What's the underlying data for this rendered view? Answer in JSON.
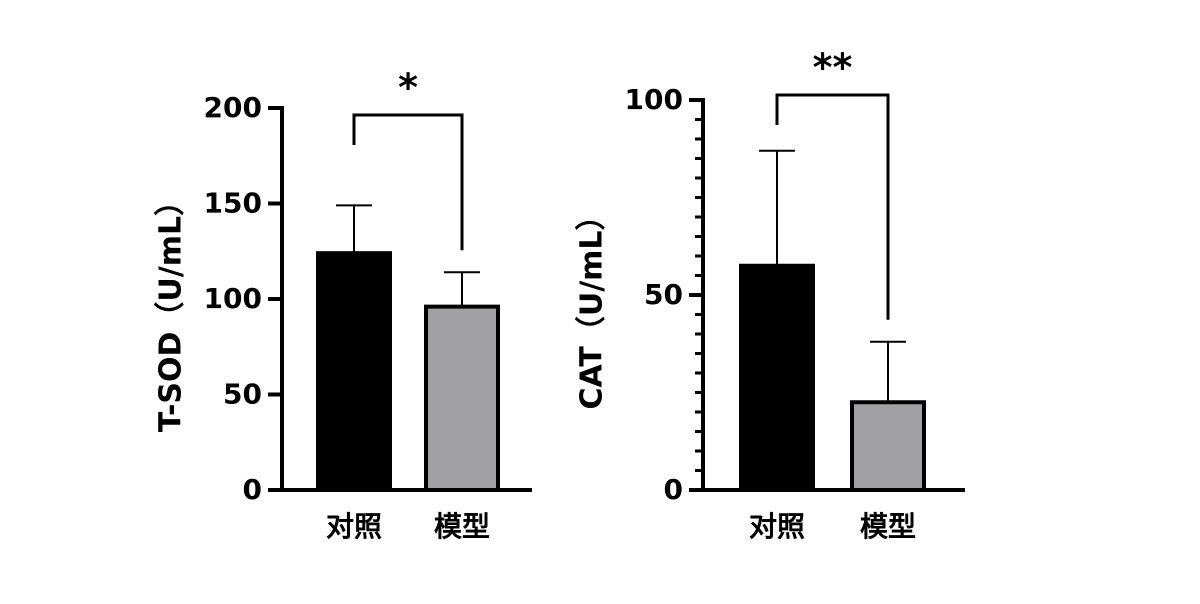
{
  "chart_data": [
    {
      "type": "bar",
      "y_label": "T-SOD（U/mL）",
      "categories": [
        "对照",
        "模型"
      ],
      "values": [
        124,
        96
      ],
      "errors": [
        25,
        18
      ],
      "colors": [
        "#000000",
        "#a0a0a5"
      ],
      "ylim": [
        0,
        200
      ],
      "yticks": [
        0,
        50,
        100,
        150,
        200
      ],
      "significance": "*"
    },
    {
      "type": "bar",
      "y_label": "CAT（U/mL）",
      "categories": [
        "对照",
        "模型"
      ],
      "values": [
        57.5,
        22.5
      ],
      "errors": [
        29.5,
        15.5
      ],
      "colors": [
        "#000000",
        "#a0a0a5"
      ],
      "ylim": [
        0,
        100
      ],
      "yticks": [
        0,
        50,
        100
      ],
      "minor_yticks": [
        5,
        10,
        15,
        20,
        25,
        30,
        35,
        40,
        45,
        55,
        60,
        65,
        70,
        75,
        80,
        85,
        90,
        95
      ],
      "significance": "**"
    }
  ]
}
